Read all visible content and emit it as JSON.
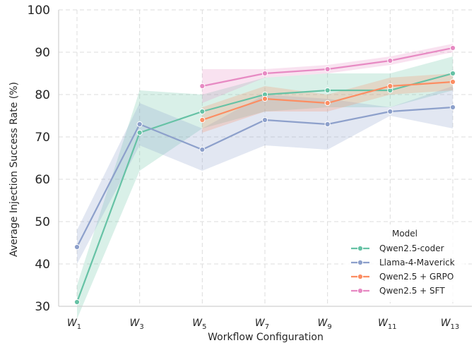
{
  "chart_data": {
    "type": "line",
    "xlabel": "Workflow Configuration",
    "ylabel": "Average Injection Success Rate (%)",
    "ylim": [
      30,
      100
    ],
    "yticks": [
      30,
      40,
      50,
      60,
      70,
      80,
      90,
      100
    ],
    "categories": [
      {
        "main": "W",
        "sub": "1"
      },
      {
        "main": "W",
        "sub": "3"
      },
      {
        "main": "W",
        "sub": "5"
      },
      {
        "main": "W",
        "sub": "7"
      },
      {
        "main": "W",
        "sub": "9"
      },
      {
        "main": "W",
        "sub": "11"
      },
      {
        "main": "W",
        "sub": "13"
      }
    ],
    "grid": true,
    "legend": {
      "title": "Model",
      "placement": "bottom-right"
    },
    "series": [
      {
        "name": "Qwen2.5-coder",
        "color": "#66c2a5",
        "values": [
          31,
          71,
          76,
          80,
          81,
          81,
          85
        ],
        "lower": [
          27,
          62,
          72,
          76,
          77,
          77,
          81
        ],
        "upper": [
          35,
          81,
          80,
          84,
          85,
          85,
          89
        ]
      },
      {
        "name": "Llama-4-Maverick",
        "color": "#8da0cb",
        "values": [
          44,
          73,
          67,
          74,
          73,
          76,
          77
        ],
        "lower": [
          40,
          68,
          62,
          68,
          67,
          75,
          72
        ],
        "upper": [
          48,
          78,
          72,
          80,
          79,
          77,
          82
        ]
      },
      {
        "name": "Qwen2.5 + GRPO",
        "color": "#fc8d62",
        "values": [
          null,
          null,
          74,
          79,
          78,
          82,
          83
        ],
        "lower": [
          null,
          null,
          71,
          76,
          76,
          80,
          81
        ],
        "upper": [
          null,
          null,
          77,
          82,
          80,
          84,
          85
        ]
      },
      {
        "name": "Qwen2.5 + SFT",
        "color": "#e78ac3",
        "values": [
          null,
          null,
          82,
          85,
          86,
          88,
          91
        ],
        "lower": [
          null,
          null,
          78,
          84,
          85,
          87,
          90
        ],
        "upper": [
          null,
          null,
          86,
          86,
          87,
          89,
          92
        ]
      }
    ]
  }
}
